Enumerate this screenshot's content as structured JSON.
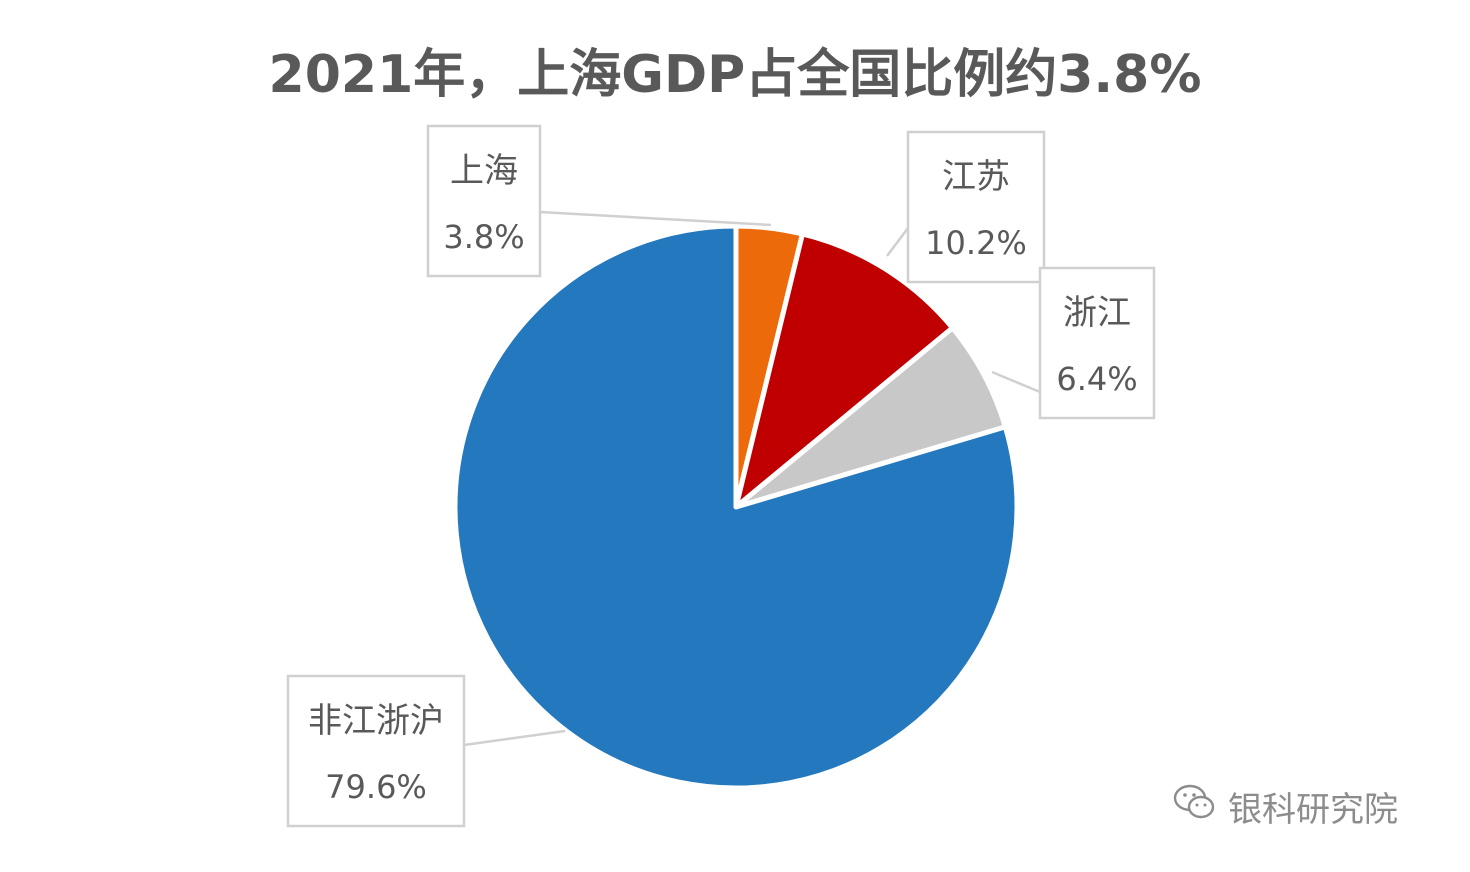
{
  "chart_data": {
    "type": "pie",
    "title": "2021年，上海GDP占全国比例约3.8%",
    "slices": [
      {
        "label": "上海",
        "value_label": "3.8%",
        "value": 3.8,
        "color": "#ED6A0B"
      },
      {
        "label": "江苏",
        "value_label": "10.2%",
        "value": 10.2,
        "color": "#C00000"
      },
      {
        "label": "浙江",
        "value_label": "6.4%",
        "value": 6.4,
        "color": "#C8C8C8"
      },
      {
        "label": "非江浙沪",
        "value_label": "79.6%",
        "value": 79.6,
        "color": "#2478BE"
      }
    ],
    "legend": "none"
  },
  "watermark": {
    "text": "银科研究院",
    "icon": "wechat-icon"
  }
}
